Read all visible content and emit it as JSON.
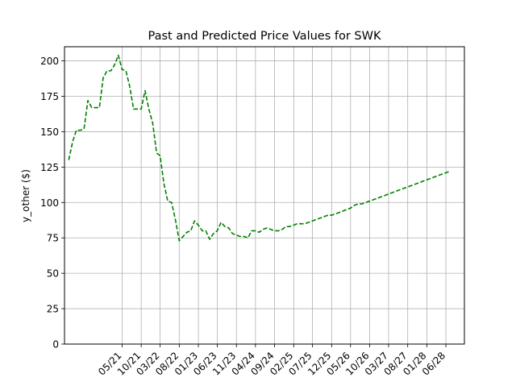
{
  "chart_data": {
    "type": "line",
    "title": "Past and Predicted Price Values for SWK",
    "xlabel": "",
    "ylabel": "y_other ($)",
    "ylim": [
      0,
      210
    ],
    "yticks": [
      0,
      25,
      50,
      75,
      100,
      125,
      150,
      175,
      200
    ],
    "xlim": [
      "2020-01-27",
      "2028-10-27"
    ],
    "xticks": [
      {
        "date": "2021-05-01",
        "label": "05/21"
      },
      {
        "date": "2021-10-01",
        "label": "10/21"
      },
      {
        "date": "2022-03-01",
        "label": "03/22"
      },
      {
        "date": "2022-08-01",
        "label": "08/22"
      },
      {
        "date": "2023-01-01",
        "label": "01/23"
      },
      {
        "date": "2023-06-01",
        "label": "06/23"
      },
      {
        "date": "2023-11-01",
        "label": "11/23"
      },
      {
        "date": "2024-04-01",
        "label": "04/24"
      },
      {
        "date": "2024-09-01",
        "label": "09/24"
      },
      {
        "date": "2025-02-01",
        "label": "02/25"
      },
      {
        "date": "2025-07-01",
        "label": "07/25"
      },
      {
        "date": "2025-12-01",
        "label": "12/25"
      },
      {
        "date": "2026-05-01",
        "label": "05/26"
      },
      {
        "date": "2026-10-01",
        "label": "10/26"
      },
      {
        "date": "2027-03-01",
        "label": "03/27"
      },
      {
        "date": "2027-08-01",
        "label": "08/27"
      },
      {
        "date": "2028-01-01",
        "label": "01/28"
      },
      {
        "date": "2028-06-01",
        "label": "06/28"
      }
    ],
    "grid": true,
    "series": [
      {
        "color": "#008000",
        "linestyle": "dashed",
        "points": [
          [
            "2020-03-01",
            130
          ],
          [
            "2020-04-01",
            143
          ],
          [
            "2020-05-01",
            151
          ],
          [
            "2020-06-01",
            151
          ],
          [
            "2020-07-01",
            152
          ],
          [
            "2020-08-01",
            172
          ],
          [
            "2020-09-01",
            167
          ],
          [
            "2020-10-01",
            167
          ],
          [
            "2020-11-01",
            167
          ],
          [
            "2020-12-01",
            188
          ],
          [
            "2021-01-01",
            193
          ],
          [
            "2021-02-01",
            193
          ],
          [
            "2021-03-01",
            197
          ],
          [
            "2021-04-01",
            204
          ],
          [
            "2021-05-01",
            194
          ],
          [
            "2021-06-01",
            193
          ],
          [
            "2021-07-01",
            182
          ],
          [
            "2021-08-01",
            166
          ],
          [
            "2021-09-01",
            166
          ],
          [
            "2021-10-01",
            166
          ],
          [
            "2021-11-01",
            179
          ],
          [
            "2021-12-01",
            166
          ],
          [
            "2022-01-01",
            156
          ],
          [
            "2022-02-01",
            135
          ],
          [
            "2022-03-01",
            133
          ],
          [
            "2022-04-01",
            113
          ],
          [
            "2022-05-01",
            101
          ],
          [
            "2022-06-01",
            100
          ],
          [
            "2022-07-01",
            88
          ],
          [
            "2022-08-01",
            73
          ],
          [
            "2022-09-01",
            76
          ],
          [
            "2022-10-01",
            79
          ],
          [
            "2022-11-01",
            80
          ],
          [
            "2022-12-01",
            87
          ],
          [
            "2023-01-01",
            84
          ],
          [
            "2023-02-01",
            80
          ],
          [
            "2023-03-01",
            80
          ],
          [
            "2023-04-01",
            74
          ],
          [
            "2023-05-01",
            78
          ],
          [
            "2023-06-01",
            80
          ],
          [
            "2023-07-01",
            86
          ],
          [
            "2023-08-01",
            83
          ],
          [
            "2023-09-01",
            82
          ],
          [
            "2023-10-01",
            78
          ],
          [
            "2023-11-01",
            77
          ],
          [
            "2023-12-01",
            76
          ],
          [
            "2024-01-01",
            76
          ],
          [
            "2024-02-01",
            75
          ],
          [
            "2024-03-01",
            80
          ],
          [
            "2024-04-01",
            80
          ],
          [
            "2024-05-01",
            79
          ],
          [
            "2024-06-01",
            81
          ],
          [
            "2024-07-01",
            82
          ],
          [
            "2024-08-01",
            81
          ],
          [
            "2024-09-01",
            80
          ],
          [
            "2024-10-01",
            80
          ],
          [
            "2024-11-01",
            81
          ],
          [
            "2024-12-01",
            83
          ],
          [
            "2025-01-01",
            83
          ],
          [
            "2025-02-01",
            84
          ],
          [
            "2025-03-01",
            85
          ],
          [
            "2025-04-01",
            85
          ],
          [
            "2025-05-01",
            85
          ],
          [
            "2025-06-01",
            86
          ],
          [
            "2025-07-01",
            87
          ],
          [
            "2025-08-01",
            88
          ],
          [
            "2025-09-01",
            89
          ],
          [
            "2025-10-01",
            90
          ],
          [
            "2025-11-01",
            91
          ],
          [
            "2025-12-01",
            91
          ],
          [
            "2026-01-01",
            92
          ],
          [
            "2026-02-01",
            93
          ],
          [
            "2026-03-01",
            94
          ],
          [
            "2026-04-01",
            95
          ],
          [
            "2026-05-01",
            96
          ],
          [
            "2026-06-01",
            98
          ],
          [
            "2026-07-01",
            99
          ],
          [
            "2026-08-01",
            99
          ],
          [
            "2026-09-01",
            100
          ],
          [
            "2026-10-01",
            101
          ],
          [
            "2026-11-01",
            102
          ],
          [
            "2026-12-01",
            103
          ],
          [
            "2027-01-01",
            104
          ],
          [
            "2027-02-01",
            105
          ],
          [
            "2027-03-01",
            106
          ],
          [
            "2027-04-01",
            107
          ],
          [
            "2027-05-01",
            108
          ],
          [
            "2027-06-01",
            109
          ],
          [
            "2027-07-01",
            110
          ],
          [
            "2027-08-01",
            111
          ],
          [
            "2027-09-01",
            112
          ],
          [
            "2027-10-01",
            113
          ],
          [
            "2027-11-01",
            114
          ],
          [
            "2027-12-01",
            115
          ],
          [
            "2028-01-01",
            116
          ],
          [
            "2028-02-01",
            117
          ],
          [
            "2028-03-01",
            118
          ],
          [
            "2028-04-01",
            119
          ],
          [
            "2028-05-01",
            120
          ],
          [
            "2028-06-01",
            121
          ],
          [
            "2028-07-01",
            122
          ]
        ]
      }
    ]
  }
}
